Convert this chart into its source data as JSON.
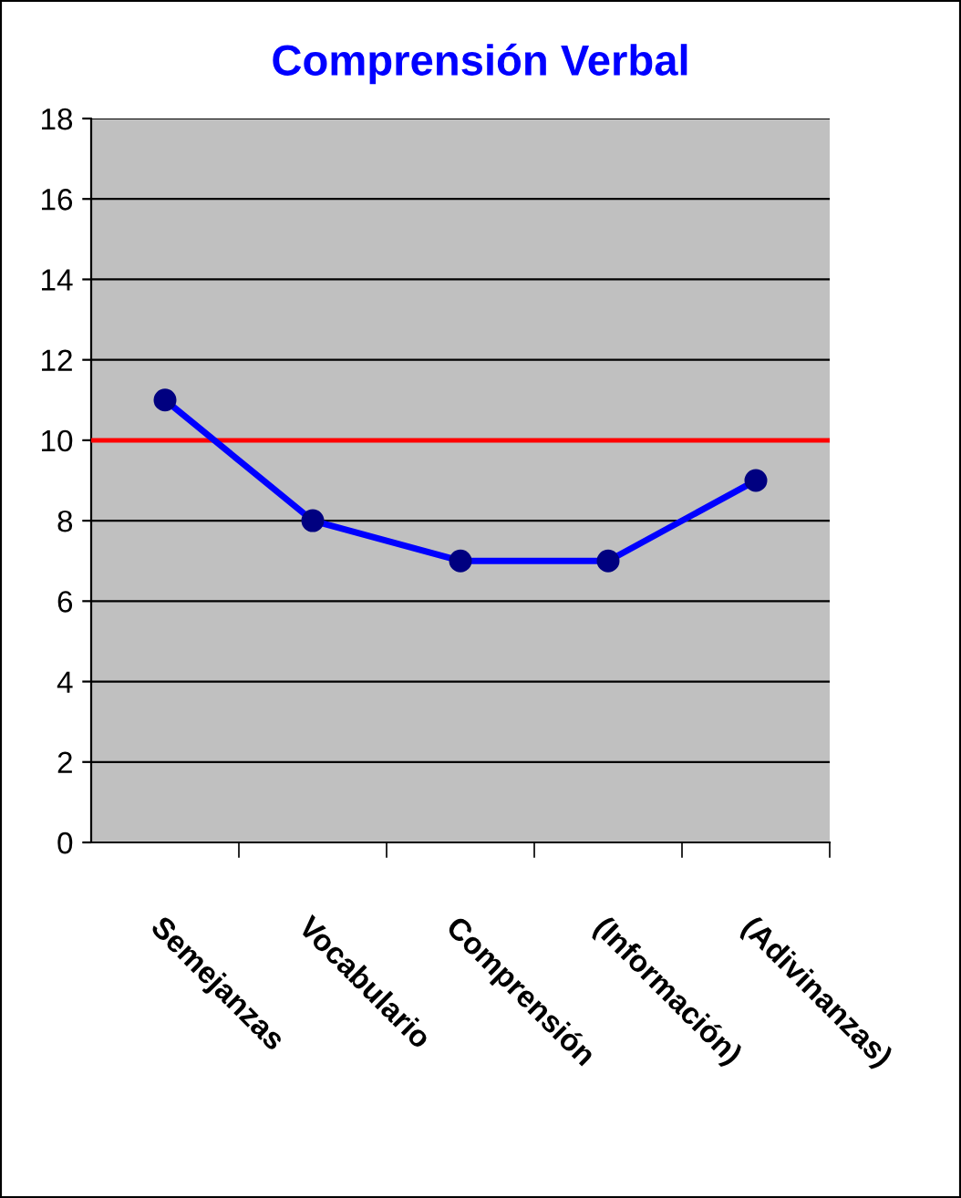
{
  "chart_data": {
    "type": "line",
    "title": "Comprensión Verbal",
    "categories": [
      "Semejanzas",
      "Vocabulario",
      "Comprensión",
      "(Información)",
      "(Adivinanzas)"
    ],
    "series": [
      {
        "color": "#0000ff",
        "values": [
          11,
          8,
          7,
          7,
          9
        ]
      }
    ],
    "marker": "circle",
    "line_style": "solid",
    "ylim": [
      0,
      18
    ],
    "yticks": [
      0,
      2,
      4,
      6,
      8,
      10,
      12,
      14,
      16,
      18
    ],
    "grid": "y",
    "legend": false,
    "ref_lines": [
      {
        "axis": "y",
        "value": 10,
        "color": "#ff0000"
      }
    ]
  }
}
